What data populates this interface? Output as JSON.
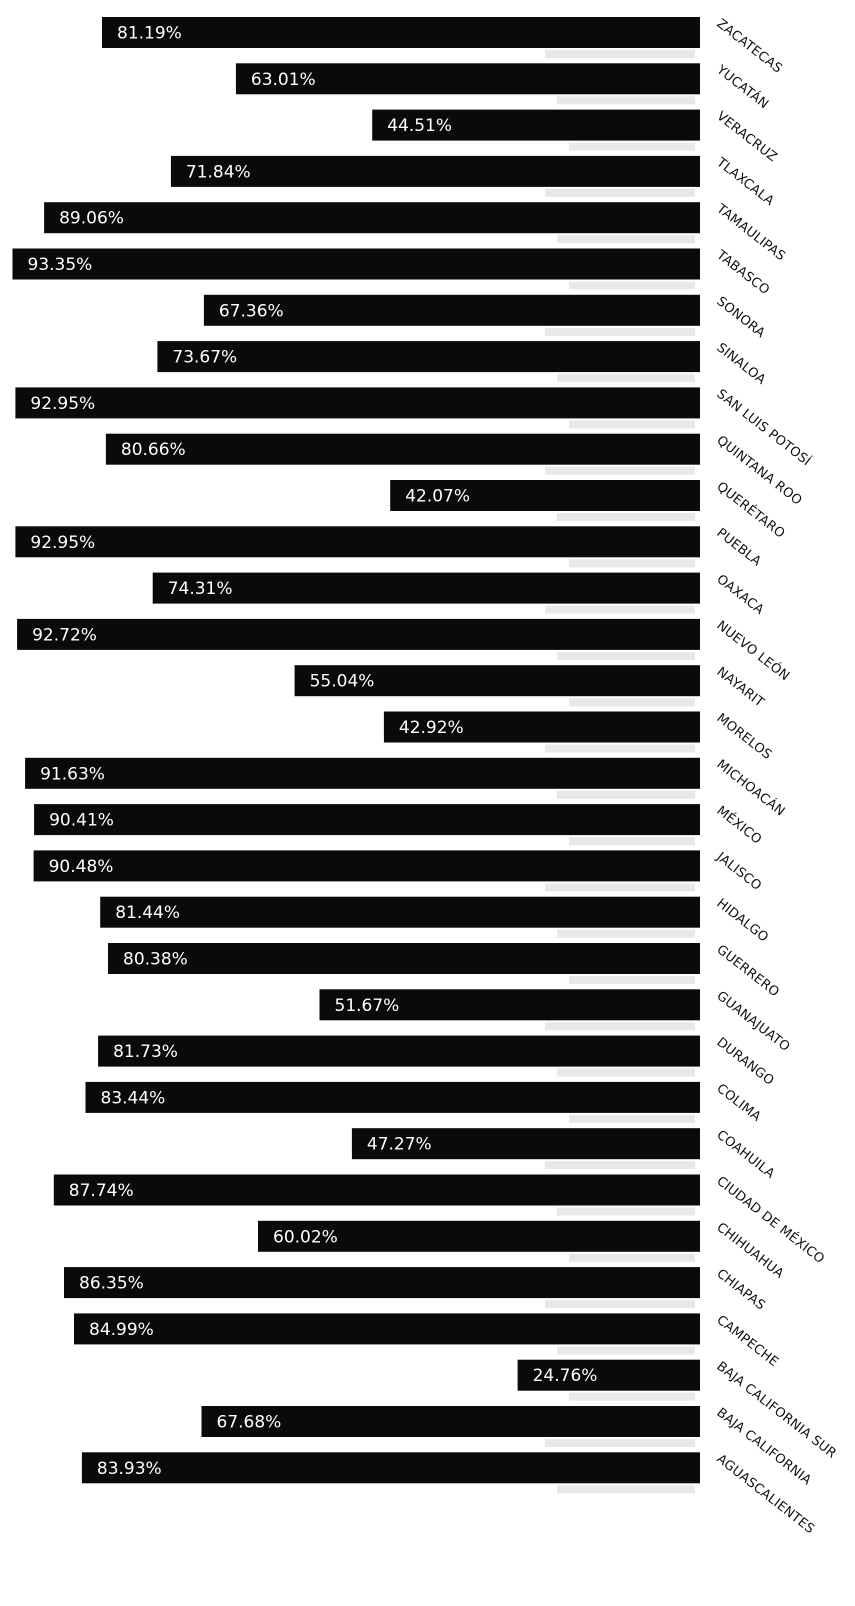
{
  "chart_data": {
    "type": "bar",
    "orientation": "horizontal",
    "axis_side": "right",
    "value_unit": "%",
    "categories": [
      "ZACATECAS",
      "YUCATÁN",
      "VERACRUZ",
      "TLAXCALA",
      "TAMAULIPAS",
      "TABASCO",
      "SONORA",
      "SINALOA",
      "SAN LUIS POTOSÍ",
      "QUINTANA ROO",
      "QUERÉTARO",
      "PUEBLA",
      "OAXACA",
      "NUEVO LEÓN",
      "NAYARIT",
      "MORELOS",
      "MICHOACÁN",
      "MÉXICO",
      "JALISCO",
      "HIDALGO",
      "GUERRERO",
      "GUANAJUATO",
      "DURANGO",
      "COLIMA",
      "COAHUILA",
      "CIUDAD DE MÉXICO",
      "CHIHUAHUA",
      "CHIAPAS",
      "CAMPECHE",
      "BAJA CALIFORNIA SUR",
      "BAJA CALIFORNIA",
      "AGUASCALIENTES"
    ],
    "values": [
      81.19,
      63.01,
      44.51,
      71.84,
      89.06,
      93.35,
      67.36,
      73.67,
      92.95,
      80.66,
      42.07,
      92.95,
      74.31,
      92.72,
      55.04,
      42.92,
      91.63,
      90.41,
      90.48,
      81.44,
      80.38,
      51.67,
      81.73,
      83.44,
      47.27,
      87.74,
      60.02,
      86.35,
      84.99,
      24.76,
      67.68,
      83.93
    ],
    "value_labels": [
      "81.19%",
      "63.01%",
      "44.51%",
      "71.84%",
      "89.06%",
      "93.35%",
      "67.36%",
      "73.67%",
      "92.95%",
      "80.66%",
      "42.07%",
      "92.95%",
      "74.31%",
      "92.72%",
      "55.04%",
      "42.92%",
      "91.63%",
      "90.41%",
      "90.48%",
      "81.44%",
      "80.38%",
      "51.67%",
      "81.73%",
      "83.44%",
      "47.27%",
      "87.74%",
      "60.02%",
      "86.35%",
      "84.99%",
      "24.76%",
      "67.68%",
      "83.93%"
    ],
    "xlim": [
      0,
      100
    ],
    "grid": false,
    "legend": "none",
    "colors": {
      "bar": "#0a0a0a",
      "value_text": "#ffffff",
      "category_text": "#111111"
    }
  }
}
